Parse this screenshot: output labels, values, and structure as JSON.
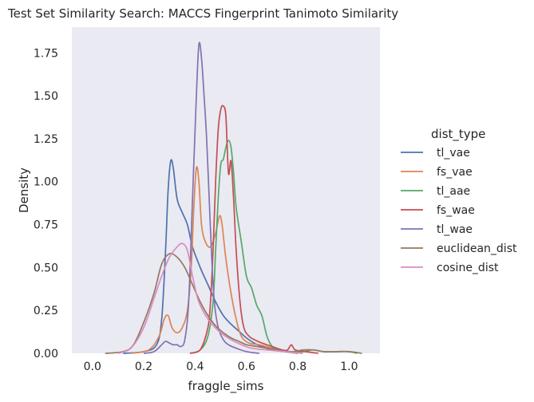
{
  "chart_data": {
    "type": "line",
    "title": "Test Set Similarity Search: MACCS Fingerprint Tanimoto Similarity",
    "xlabel": "fraggle_sims",
    "ylabel": "Density",
    "xlim": [
      -0.08,
      1.12
    ],
    "ylim": [
      0,
      1.9
    ],
    "xticks": [
      0.0,
      0.2,
      0.4,
      0.6,
      0.8,
      1.0
    ],
    "xtick_labels": [
      "0.0",
      "0.2",
      "0.4",
      "0.6",
      "0.8",
      "1.0"
    ],
    "yticks": [
      0.0,
      0.25,
      0.5,
      0.75,
      1.0,
      1.25,
      1.5,
      1.75
    ],
    "ytick_labels": [
      "0.00",
      "0.25",
      "0.50",
      "0.75",
      "1.00",
      "1.25",
      "1.50",
      "1.75"
    ],
    "grid": false,
    "background": "#eaeaf2",
    "legend": {
      "title": "dist_type",
      "placement": "outside-right"
    },
    "series": [
      {
        "name": "tl_vae",
        "color": "#4c72b0",
        "points": [
          [
            0.12,
            0
          ],
          [
            0.2,
            0.01
          ],
          [
            0.25,
            0.05
          ],
          [
            0.27,
            0.2
          ],
          [
            0.285,
            0.6
          ],
          [
            0.295,
            0.95
          ],
          [
            0.305,
            1.12
          ],
          [
            0.315,
            1.08
          ],
          [
            0.33,
            0.9
          ],
          [
            0.35,
            0.82
          ],
          [
            0.37,
            0.75
          ],
          [
            0.39,
            0.62
          ],
          [
            0.42,
            0.5
          ],
          [
            0.45,
            0.4
          ],
          [
            0.48,
            0.3
          ],
          [
            0.51,
            0.22
          ],
          [
            0.54,
            0.17
          ],
          [
            0.57,
            0.13
          ],
          [
            0.6,
            0.09
          ],
          [
            0.63,
            0.06
          ],
          [
            0.66,
            0.04
          ],
          [
            0.7,
            0.02
          ],
          [
            0.75,
            0.01
          ],
          [
            0.8,
            0
          ]
        ]
      },
      {
        "name": "fs_vae",
        "color": "#dd8452",
        "points": [
          [
            0.15,
            0
          ],
          [
            0.22,
            0.02
          ],
          [
            0.26,
            0.1
          ],
          [
            0.28,
            0.2
          ],
          [
            0.295,
            0.22
          ],
          [
            0.31,
            0.15
          ],
          [
            0.33,
            0.12
          ],
          [
            0.35,
            0.15
          ],
          [
            0.37,
            0.25
          ],
          [
            0.385,
            0.5
          ],
          [
            0.395,
            0.85
          ],
          [
            0.405,
            1.08
          ],
          [
            0.415,
            1.0
          ],
          [
            0.425,
            0.75
          ],
          [
            0.44,
            0.65
          ],
          [
            0.46,
            0.62
          ],
          [
            0.48,
            0.7
          ],
          [
            0.495,
            0.8
          ],
          [
            0.505,
            0.75
          ],
          [
            0.52,
            0.55
          ],
          [
            0.54,
            0.35
          ],
          [
            0.56,
            0.2
          ],
          [
            0.58,
            0.1
          ],
          [
            0.61,
            0.06
          ],
          [
            0.65,
            0.05
          ],
          [
            0.7,
            0.03
          ],
          [
            0.75,
            0.01
          ],
          [
            0.8,
            0
          ]
        ]
      },
      {
        "name": "tl_aae",
        "color": "#55a868",
        "points": [
          [
            0.38,
            0
          ],
          [
            0.42,
            0.02
          ],
          [
            0.45,
            0.1
          ],
          [
            0.47,
            0.3
          ],
          [
            0.48,
            0.6
          ],
          [
            0.49,
            0.9
          ],
          [
            0.5,
            1.1
          ],
          [
            0.51,
            1.13
          ],
          [
            0.52,
            1.2
          ],
          [
            0.53,
            1.24
          ],
          [
            0.54,
            1.2
          ],
          [
            0.55,
            1.05
          ],
          [
            0.56,
            0.85
          ],
          [
            0.58,
            0.65
          ],
          [
            0.6,
            0.45
          ],
          [
            0.62,
            0.38
          ],
          [
            0.64,
            0.28
          ],
          [
            0.66,
            0.22
          ],
          [
            0.68,
            0.1
          ],
          [
            0.7,
            0.04
          ],
          [
            0.72,
            0.02
          ],
          [
            0.76,
            0.01
          ],
          [
            0.82,
            0.01
          ],
          [
            0.86,
            0.02
          ],
          [
            0.9,
            0.01
          ],
          [
            0.95,
            0.01
          ],
          [
            1.0,
            0.01
          ],
          [
            1.03,
            0
          ]
        ]
      },
      {
        "name": "fs_wae",
        "color": "#c44e52",
        "points": [
          [
            0.38,
            0
          ],
          [
            0.42,
            0.02
          ],
          [
            0.45,
            0.15
          ],
          [
            0.46,
            0.3
          ],
          [
            0.47,
            0.6
          ],
          [
            0.48,
            1.0
          ],
          [
            0.49,
            1.3
          ],
          [
            0.5,
            1.42
          ],
          [
            0.51,
            1.44
          ],
          [
            0.52,
            1.38
          ],
          [
            0.53,
            1.05
          ],
          [
            0.54,
            1.12
          ],
          [
            0.55,
            0.9
          ],
          [
            0.56,
            0.6
          ],
          [
            0.575,
            0.3
          ],
          [
            0.59,
            0.15
          ],
          [
            0.61,
            0.1
          ],
          [
            0.63,
            0.08
          ],
          [
            0.66,
            0.06
          ],
          [
            0.7,
            0.04
          ],
          [
            0.74,
            0.02
          ],
          [
            0.76,
            0.02
          ],
          [
            0.775,
            0.05
          ],
          [
            0.79,
            0.02
          ],
          [
            0.83,
            0.01
          ],
          [
            0.88,
            0
          ]
        ]
      },
      {
        "name": "tl_wae",
        "color": "#8172b3",
        "points": [
          [
            0.2,
            0
          ],
          [
            0.24,
            0.01
          ],
          [
            0.27,
            0.05
          ],
          [
            0.285,
            0.07
          ],
          [
            0.3,
            0.06
          ],
          [
            0.315,
            0.05
          ],
          [
            0.33,
            0.05
          ],
          [
            0.345,
            0.04
          ],
          [
            0.36,
            0.08
          ],
          [
            0.375,
            0.3
          ],
          [
            0.39,
            0.9
          ],
          [
            0.405,
            1.5
          ],
          [
            0.415,
            1.8
          ],
          [
            0.425,
            1.72
          ],
          [
            0.435,
            1.5
          ],
          [
            0.445,
            1.25
          ],
          [
            0.455,
            0.9
          ],
          [
            0.465,
            0.55
          ],
          [
            0.475,
            0.3
          ],
          [
            0.49,
            0.15
          ],
          [
            0.51,
            0.08
          ],
          [
            0.53,
            0.05
          ],
          [
            0.56,
            0.03
          ],
          [
            0.6,
            0.01
          ],
          [
            0.65,
            0
          ]
        ]
      },
      {
        "name": "euclidean_dist",
        "color": "#937860",
        "points": [
          [
            0.05,
            0
          ],
          [
            0.12,
            0.01
          ],
          [
            0.16,
            0.05
          ],
          [
            0.2,
            0.18
          ],
          [
            0.24,
            0.35
          ],
          [
            0.27,
            0.52
          ],
          [
            0.3,
            0.58
          ],
          [
            0.33,
            0.56
          ],
          [
            0.36,
            0.5
          ],
          [
            0.39,
            0.4
          ],
          [
            0.42,
            0.3
          ],
          [
            0.45,
            0.22
          ],
          [
            0.48,
            0.16
          ],
          [
            0.51,
            0.12
          ],
          [
            0.54,
            0.09
          ],
          [
            0.57,
            0.07
          ],
          [
            0.6,
            0.05
          ],
          [
            0.64,
            0.04
          ],
          [
            0.68,
            0.03
          ],
          [
            0.72,
            0.02
          ],
          [
            0.78,
            0.01
          ],
          [
            0.82,
            0.02
          ],
          [
            0.86,
            0.02
          ],
          [
            0.9,
            0.01
          ],
          [
            0.95,
            0.01
          ],
          [
            1.0,
            0.01
          ],
          [
            1.05,
            0
          ]
        ]
      },
      {
        "name": "cosine_dist",
        "color": "#da8bc3",
        "points": [
          [
            0.1,
            0
          ],
          [
            0.15,
            0.03
          ],
          [
            0.2,
            0.15
          ],
          [
            0.24,
            0.32
          ],
          [
            0.27,
            0.45
          ],
          [
            0.3,
            0.56
          ],
          [
            0.33,
            0.62
          ],
          [
            0.35,
            0.64
          ],
          [
            0.37,
            0.6
          ],
          [
            0.39,
            0.45
          ],
          [
            0.41,
            0.32
          ],
          [
            0.43,
            0.25
          ],
          [
            0.46,
            0.18
          ],
          [
            0.5,
            0.12
          ],
          [
            0.54,
            0.08
          ],
          [
            0.58,
            0.05
          ],
          [
            0.62,
            0.03
          ],
          [
            0.68,
            0.02
          ],
          [
            0.75,
            0.01
          ],
          [
            0.82,
            0
          ]
        ]
      }
    ]
  }
}
